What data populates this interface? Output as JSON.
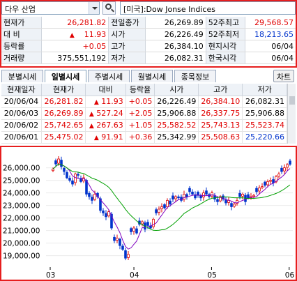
{
  "selector": {
    "stock_name": "다우 산업",
    "index_label": "[미국]:Dow Jonse Indices"
  },
  "info": {
    "r1": {
      "l1": "현재가",
      "v1": "26,281.82",
      "l2": "전일종가",
      "v2": "26,269.89",
      "l3": "52주최고",
      "v3": "29,568.57"
    },
    "r2": {
      "l1": "대  비",
      "arrow": "▲",
      "v1": "11.93",
      "l2": "시가",
      "v2": "26,226.49",
      "l3": "52주최저",
      "v3": "18,213.65"
    },
    "r3": {
      "l1": "등락률",
      "v1": "+0.05",
      "l2": "고가",
      "v2": "26,384.10",
      "l3": "현지시각",
      "v3": "06/04"
    },
    "r4": {
      "l1": "거래량",
      "v1": "375,551,192",
      "l2": "저가",
      "v2": "26,082.31",
      "l3": "한국시각",
      "v3": "06/04"
    }
  },
  "tabs": [
    "분별시세",
    "일별시세",
    "주별시세",
    "월별시세",
    "종목정보"
  ],
  "chart_button": "차트",
  "grid": {
    "headers": [
      "현재일자",
      "현재가",
      "대비",
      "등락율",
      "시가",
      "고가",
      "저가"
    ],
    "rows": [
      {
        "date": "20/06/04",
        "price": "26,281.82",
        "arrow": "▲",
        "change": "11.93",
        "pct": "+0.05",
        "open": "26,226.49",
        "high": "26,384.10",
        "low": "26,082.31"
      },
      {
        "date": "20/06/03",
        "price": "26,269.89",
        "arrow": "▲",
        "change": "527.24",
        "pct": "+2.05",
        "open": "25,906.88",
        "high": "26,337.75",
        "low": "25,906.88"
      },
      {
        "date": "20/06/02",
        "price": "25,742.65",
        "arrow": "▲",
        "change": "267.63",
        "pct": "+1.05",
        "open": "25,582.52",
        "high": "25,743.13",
        "low": "25,523.74"
      },
      {
        "date": "20/06/01",
        "price": "25,475.02",
        "arrow": "▲",
        "change": "91.91",
        "pct": "+0.36",
        "open": "25,342.99",
        "high": "25,508.63",
        "low": "25,220.66"
      }
    ]
  },
  "chart_data": {
    "type": "candlestick",
    "y_ticks": [
      "26,000.00",
      "25,000.00",
      "24,000.00",
      "23,000.00",
      "22,000.00",
      "21,000.00",
      "20,000.00",
      "19,000.00"
    ],
    "x_ticks": [
      "03",
      "04",
      "05",
      "06"
    ],
    "ylim": [
      18200,
      27200
    ],
    "up_color": "#e00000",
    "down_color": "#0033cc",
    "ma_short_color": "#8000c0",
    "ma_long_color": "#00a000",
    "closes": [
      25900,
      26300,
      26700,
      26100,
      25700,
      25200,
      25000,
      24700,
      25500,
      25400,
      24900,
      25200,
      23900,
      23700,
      23400,
      23900,
      23700,
      22600,
      22400,
      22100,
      22500,
      21200,
      20200,
      20400,
      19800,
      19500,
      18800,
      19100,
      20900,
      21200,
      20800,
      21500,
      21700,
      21100,
      21400,
      21200,
      21900,
      22400,
      22700,
      22900,
      22800,
      23400,
      23100,
      23500,
      23700,
      23600,
      23400,
      23900,
      23700,
      24100,
      23900,
      23600,
      23800,
      23600,
      24000,
      23900,
      23700,
      24000,
      23500,
      23300,
      23700,
      23500,
      23200,
      23400,
      22900,
      23100,
      23400,
      23700,
      23900,
      23300,
      23600,
      23700,
      23800,
      24100,
      24400,
      24500,
      24600,
      24900,
      25000,
      24800,
      25300,
      25500,
      25700,
      26000,
      26250,
      26280
    ]
  }
}
